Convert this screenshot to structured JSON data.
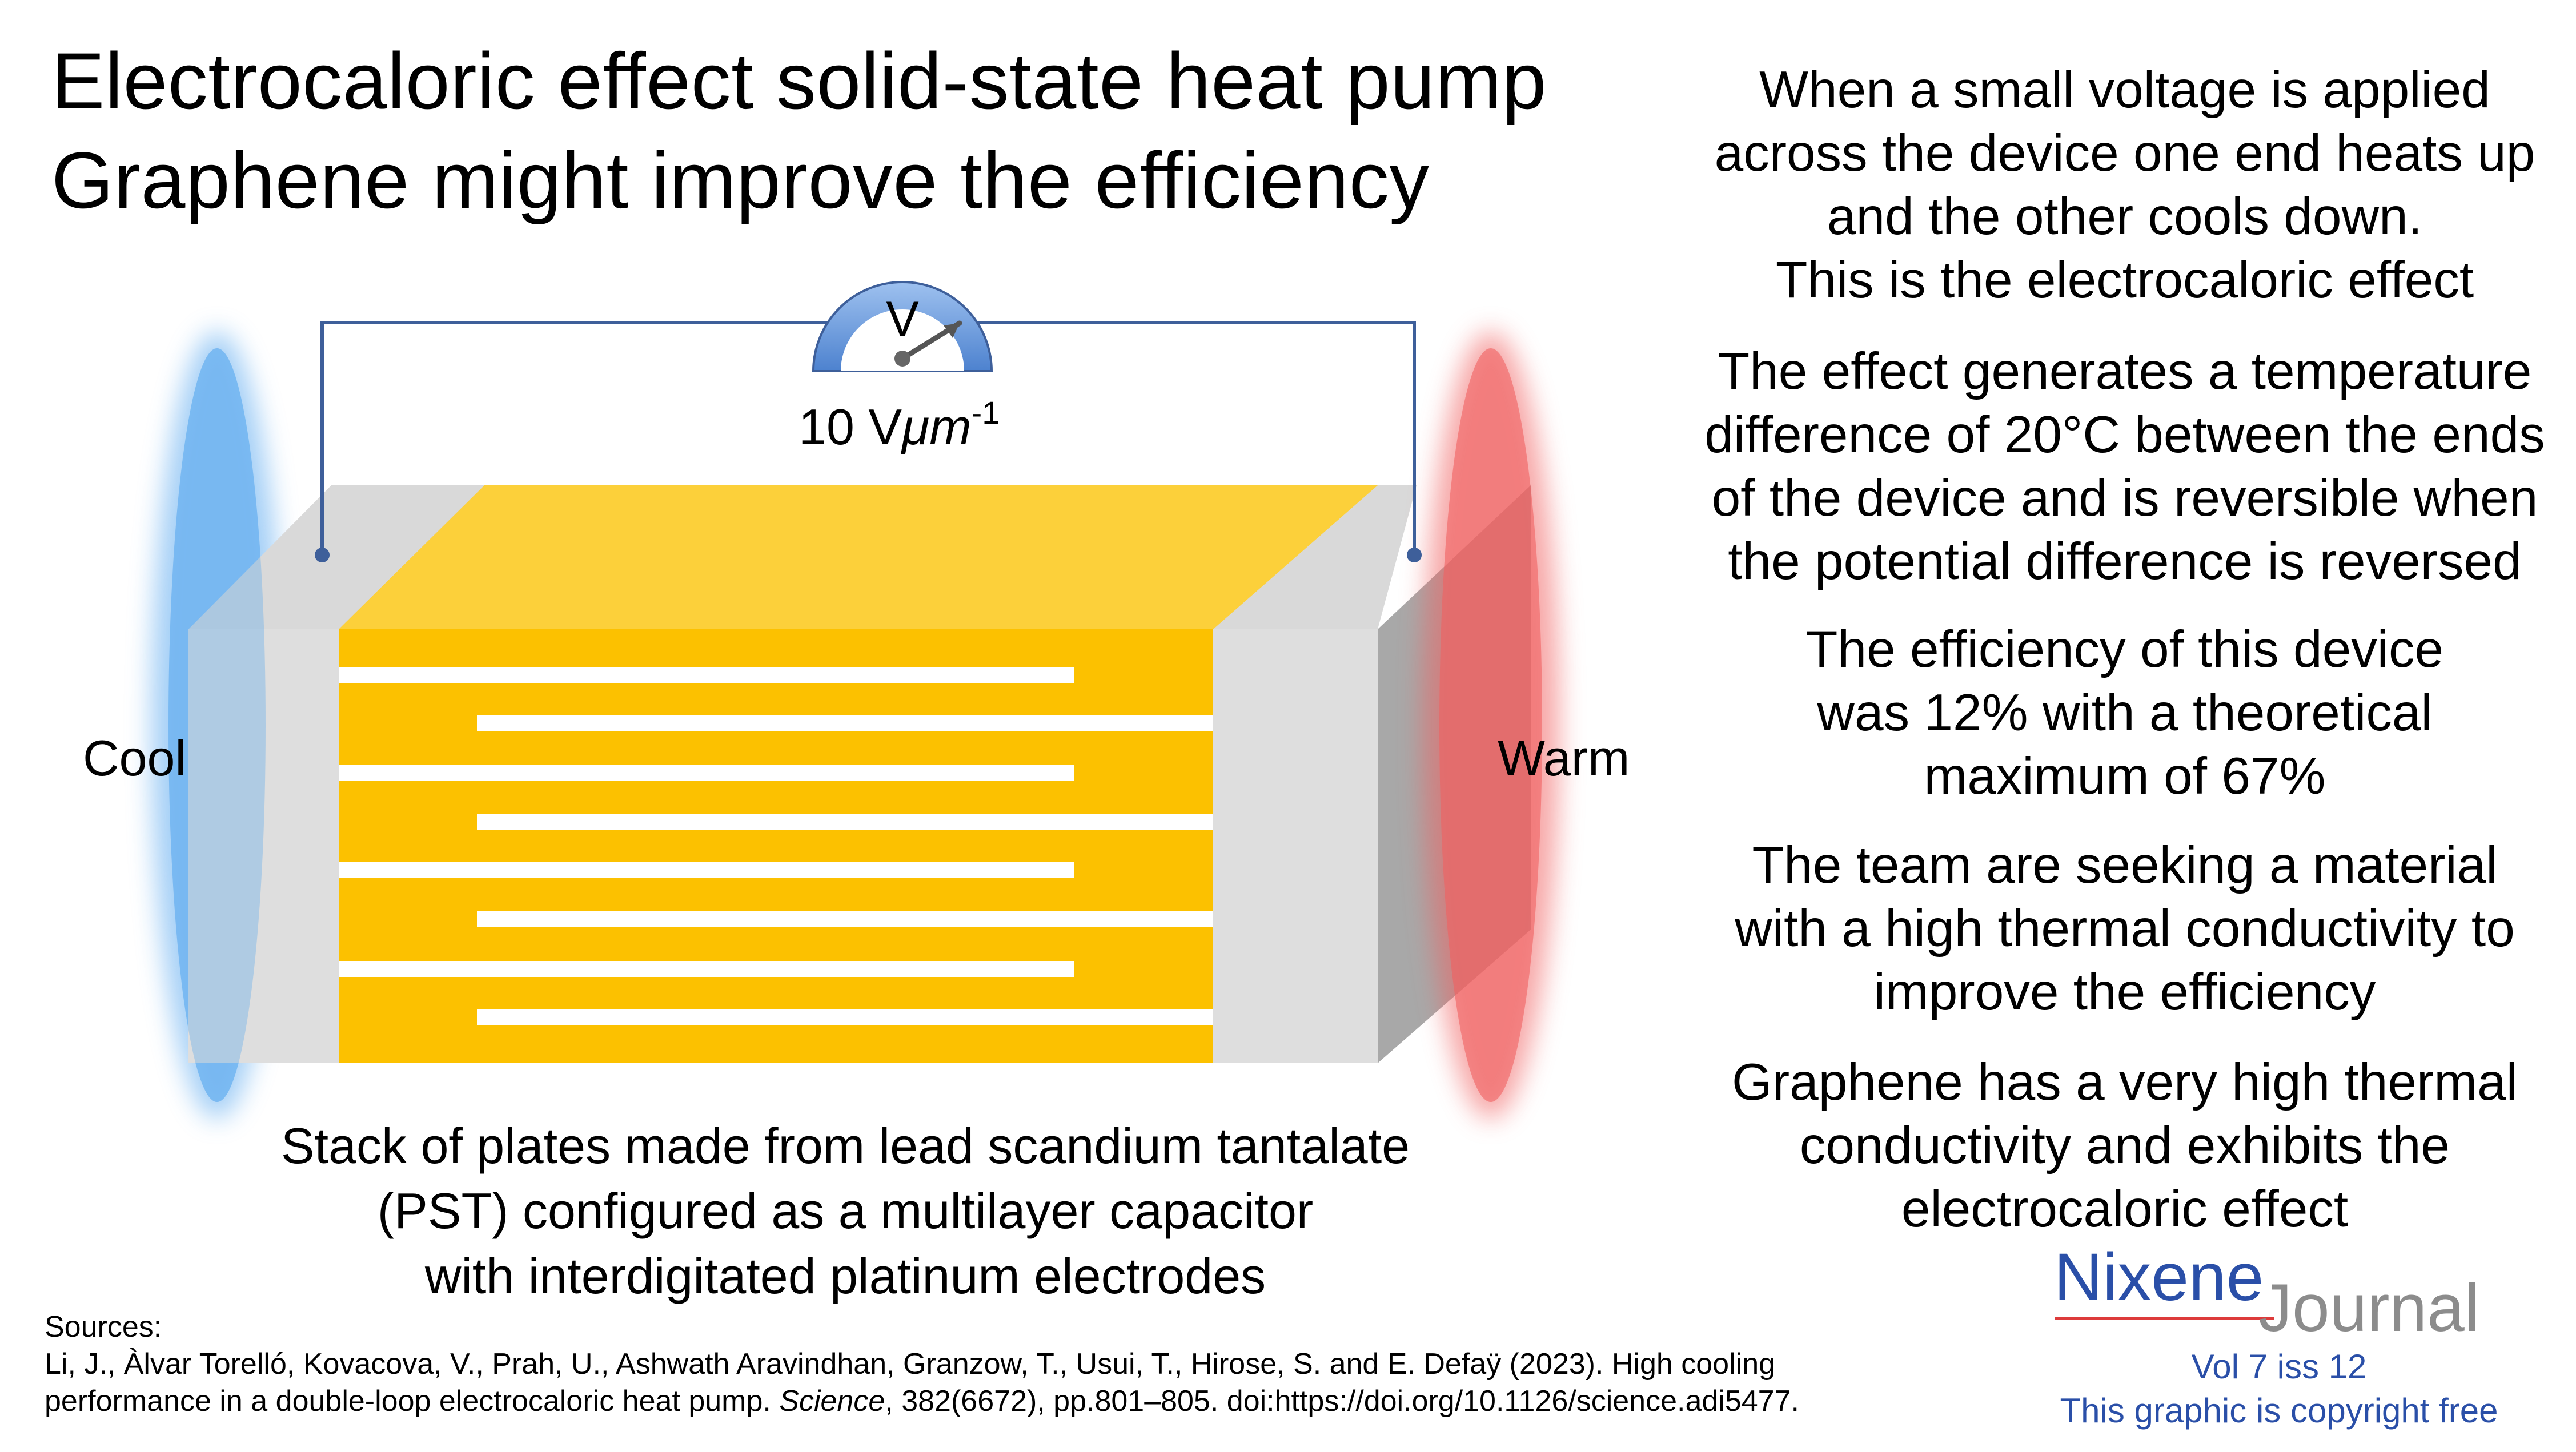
{
  "title_line1": "Electrocaloric effect solid-state heat pump",
  "title_line2": "Graphene might improve the efficiency",
  "meter": {
    "symbol": "V",
    "field_prefix": "10 V",
    "field_unit": "μm",
    "field_exp": "-1"
  },
  "labels": {
    "cool": "Cool",
    "warm": "Warm"
  },
  "caption": [
    "Stack of plates made from lead scandium tantalate",
    "(PST) configured as a multilayer capacitor",
    "with interdigitated platinum electrodes"
  ],
  "paragraphs": [
    [
      "When a small voltage is applied",
      "across the device one end heats up",
      "and the other cools down.",
      "This is the electrocaloric effect"
    ],
    [
      "The effect generates a temperature",
      "difference of 20°C between the ends",
      "of the device and is reversible when",
      "the potential difference is reversed"
    ],
    [
      "The efficiency of this device",
      "was 12% with a theoretical",
      "maximum of 67%"
    ],
    [
      "The team are seeking a material",
      "with a high thermal conductivity to",
      "improve the efficiency"
    ],
    [
      "Graphene has a very high thermal",
      "conductivity and exhibits the",
      "electrocaloric effect"
    ]
  ],
  "sources": {
    "heading": "Sources:",
    "line1": "Li, J., Àlvar Torelló, Kovacova, V., Prah, U., Ashwath Aravindhan, Granzow, T., Usui, T., Hirose, S. and E. Defaÿ (2023). High cooling",
    "line2_start": "performance in a double-loop electrocaloric heat pump. ",
    "line2_journal": "Science",
    "line2_end": ", 382(6672), pp.801–805. doi:https://doi.org/10.1126/science.adi5477."
  },
  "branding": {
    "name": "Nixene",
    "suffix": "Journal",
    "volume": "Vol 7 iss 12",
    "copyright": "This graphic is copyright free"
  },
  "colors": {
    "cool": "#5aa8ef",
    "warm": "#f06060",
    "pst": "#fcc100",
    "pst_top": "#fcd03a",
    "electrode": "#ffffff",
    "wire": "#3e5f9a",
    "brand_blue": "#2a4fa8",
    "brand_grey": "#8c8c8c",
    "brand_red": "#dd3b3b"
  }
}
